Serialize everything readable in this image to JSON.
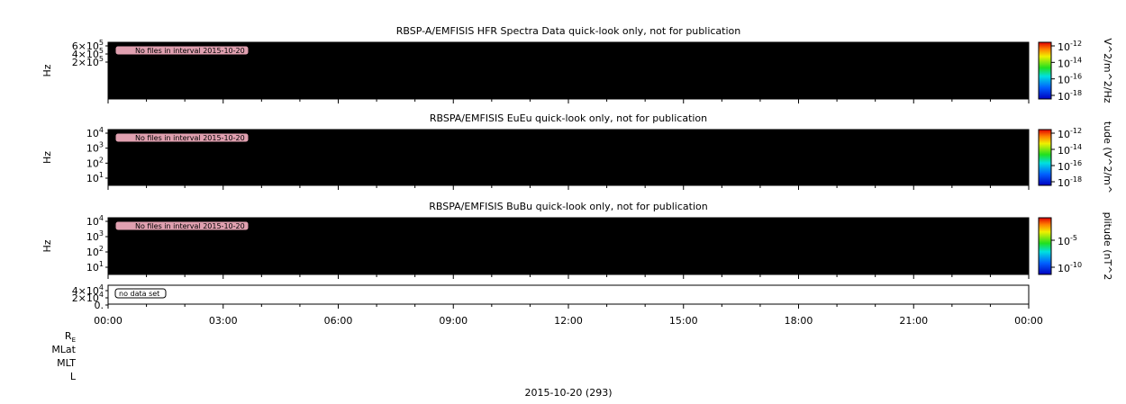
{
  "panels": [
    {
      "title": "RBSP-A/EMFISIS  HFR Spectra Data quick-look only, not for publication",
      "ylabel": "Hz",
      "yticks": [
        {
          "text": "6×10",
          "sup": "5"
        },
        {
          "text": "4×10",
          "sup": "5"
        },
        {
          "text": "2×10",
          "sup": "5"
        }
      ],
      "notice": "No files in interval 2015-10-20",
      "colorbar_label": "V^2/m^2/Hz",
      "colorbar_ticks": [
        {
          "text": "10",
          "sup": "-12"
        },
        {
          "text": "10",
          "sup": "-14"
        },
        {
          "text": "10",
          "sup": "-16"
        },
        {
          "text": "10",
          "sup": "-18"
        }
      ]
    },
    {
      "title": "RBSPA/EMFISIS  EuEu quick-look only, not for publication",
      "ylabel": "Hz",
      "yticks": [
        {
          "text": "10",
          "sup": "4"
        },
        {
          "text": "10",
          "sup": "3"
        },
        {
          "text": "10",
          "sup": "2"
        },
        {
          "text": "10",
          "sup": "1"
        }
      ],
      "notice": "No files in interval 2015-10-20",
      "colorbar_label": "tude (V^2/m^",
      "colorbar_ticks": [
        {
          "text": "10",
          "sup": "-12"
        },
        {
          "text": "10",
          "sup": "-14"
        },
        {
          "text": "10",
          "sup": "-16"
        },
        {
          "text": "10",
          "sup": "-18"
        }
      ]
    },
    {
      "title": "RBSPA/EMFISIS  BuBu quick-look only, not for publication",
      "ylabel": "Hz",
      "yticks": [
        {
          "text": "10",
          "sup": "4"
        },
        {
          "text": "10",
          "sup": "3"
        },
        {
          "text": "10",
          "sup": "2"
        },
        {
          "text": "10",
          "sup": "1"
        }
      ],
      "notice": "No files in interval 2015-10-20",
      "colorbar_label": "plitude (nT^2",
      "colorbar_ticks": [
        {
          "text": "10",
          "sup": "-5"
        },
        {
          "text": "10",
          "sup": "-10"
        }
      ]
    },
    {
      "yticks": [
        {
          "text": "4×10",
          "sup": "4"
        },
        {
          "text": "2×10",
          "sup": "4"
        },
        {
          "text": "0."
        }
      ],
      "notice": "no data set"
    }
  ],
  "xticks": [
    "00:00",
    "03:00",
    "06:00",
    "09:00",
    "12:00",
    "15:00",
    "18:00",
    "21:00",
    "00:00"
  ],
  "ephemeris": [
    {
      "text": "R",
      "sub": "E"
    },
    {
      "text": "MLat"
    },
    {
      "text": "MLT"
    },
    {
      "text": "L"
    }
  ],
  "date": "2015-10-20 (293)"
}
